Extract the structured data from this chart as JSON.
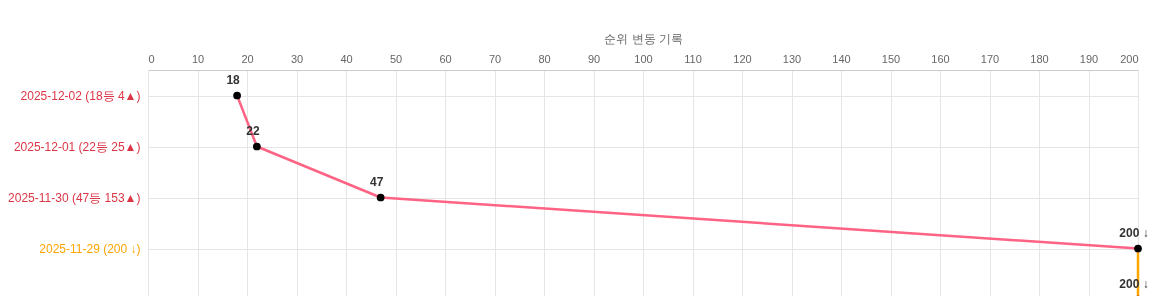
{
  "chart_data": {
    "type": "line",
    "orientation": "horizontal",
    "xlabel": "순위 변동 기록",
    "categories": [
      "2025-12-02 (18등 4▲)",
      "2025-12-01 (22등 25▲)",
      "2025-11-30 (47등 153▲)",
      "2025-11-29 (200 ↓)",
      null
    ],
    "series": [
      {
        "color": "#ff6384",
        "values": [
          18,
          22,
          47,
          200,
          null
        ],
        "value_labels": [
          "18",
          "22",
          "47",
          null,
          null
        ]
      },
      {
        "color": "#ffa500",
        "values": [
          null,
          null,
          null,
          200,
          200
        ],
        "value_labels": [
          null,
          null,
          null,
          "200 ↓",
          "200 ↓"
        ]
      }
    ],
    "xlim": [
      0,
      200
    ],
    "xticks": [
      0,
      10,
      20,
      30,
      40,
      50,
      60,
      70,
      80,
      90,
      100,
      110,
      120,
      130,
      140,
      150,
      160,
      170,
      180,
      190,
      200
    ],
    "grid": true,
    "marker": "circle",
    "line_style": "solid"
  }
}
